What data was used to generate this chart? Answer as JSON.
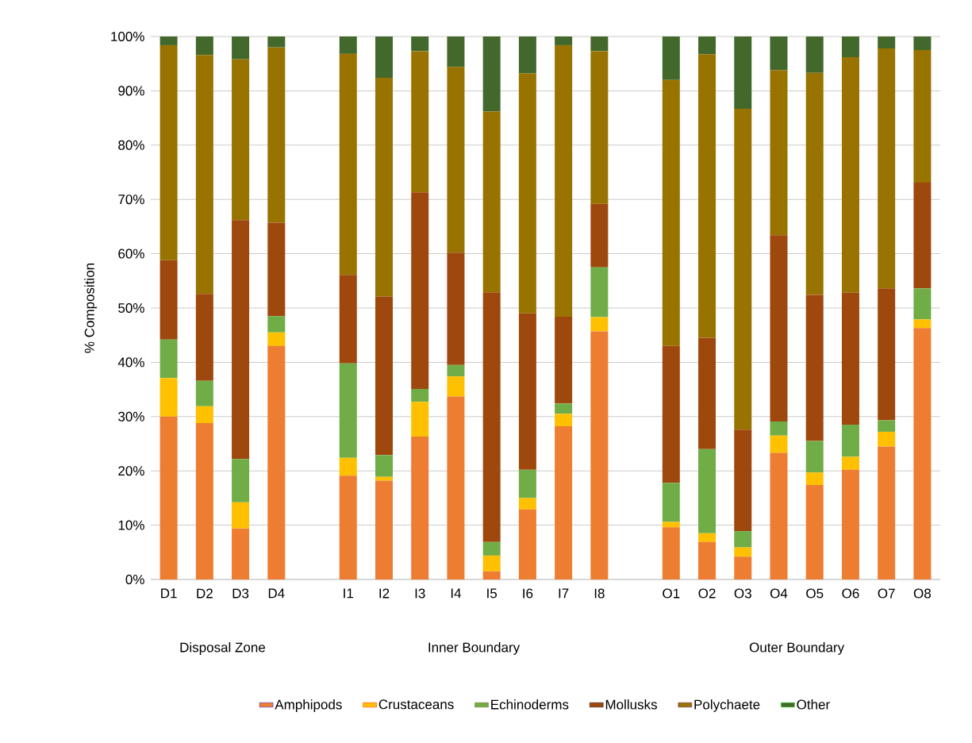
{
  "chart_data": {
    "type": "bar",
    "stacked": true,
    "ylabel": "% Composition",
    "categories": [
      "D1",
      "D2",
      "D3",
      "D4",
      null,
      "I1",
      "I2",
      "I3",
      "I4",
      "I5",
      "I6",
      "I7",
      "I8",
      null,
      "O1",
      "O2",
      "O3",
      "O4",
      "O5",
      "O6",
      "O7",
      "O8"
    ],
    "annotations": [
      "Disposal Zone",
      "Inner Boundary",
      "Outer Boundary"
    ],
    "ylim": [
      0,
      100
    ],
    "yticks": [
      {
        "value": 0,
        "label": "0%"
      },
      {
        "value": 10,
        "label": "10%"
      },
      {
        "value": 20,
        "label": "20%"
      },
      {
        "value": 30,
        "label": "30%"
      },
      {
        "value": 40,
        "label": "40%"
      },
      {
        "value": 50,
        "label": "50%"
      },
      {
        "value": 60,
        "label": "60%"
      },
      {
        "value": 70,
        "label": "70%"
      },
      {
        "value": 80,
        "label": "80%"
      },
      {
        "value": 90,
        "label": "90%"
      },
      {
        "value": 100,
        "label": "100%"
      }
    ],
    "grid": "y",
    "legend": "bottom",
    "series": [
      {
        "name": "Amphipods",
        "color": "#ed7d31",
        "values": [
          30.0,
          28.8,
          9.4,
          43.0,
          null,
          19.1,
          18.2,
          26.3,
          33.7,
          1.5,
          12.9,
          28.2,
          45.7,
          null,
          9.6,
          6.9,
          4.2,
          23.3,
          17.4,
          20.2,
          24.5,
          46.3
        ]
      },
      {
        "name": "Crustaceans",
        "color": "#ffc000",
        "values": [
          7.1,
          3.1,
          4.8,
          2.5,
          null,
          3.3,
          0.7,
          6.4,
          3.7,
          2.9,
          2.1,
          2.3,
          2.6,
          null,
          1.0,
          1.6,
          1.7,
          3.2,
          2.3,
          2.4,
          2.7,
          1.6
        ]
      },
      {
        "name": "Echinoderms",
        "color": "#70ad47",
        "values": [
          7.1,
          4.7,
          8.0,
          3.0,
          null,
          17.4,
          4.0,
          2.4,
          2.1,
          2.5,
          5.2,
          1.9,
          9.2,
          null,
          7.2,
          15.5,
          3.0,
          2.6,
          5.8,
          5.9,
          2.1,
          5.7
        ]
      },
      {
        "name": "Mollusks",
        "color": "#9e480e",
        "values": [
          14.6,
          16.0,
          44.0,
          17.2,
          null,
          16.3,
          29.2,
          36.2,
          20.7,
          46.0,
          28.8,
          16.0,
          11.7,
          null,
          25.2,
          20.5,
          18.7,
          34.3,
          26.9,
          24.3,
          24.3,
          19.5
        ]
      },
      {
        "name": "Polychaete",
        "color": "#997300",
        "values": [
          39.6,
          44.0,
          29.6,
          32.3,
          null,
          40.7,
          40.3,
          26.0,
          34.2,
          33.3,
          44.2,
          50.0,
          28.1,
          null,
          49.0,
          52.2,
          59.1,
          30.4,
          40.9,
          43.4,
          44.2,
          24.4
        ]
      },
      {
        "name": "Other",
        "color": "#43682b",
        "values": [
          1.6,
          3.4,
          4.2,
          2.0,
          null,
          3.2,
          7.6,
          2.7,
          5.6,
          13.8,
          6.8,
          1.6,
          2.7,
          null,
          8.0,
          3.3,
          13.3,
          6.2,
          6.7,
          3.8,
          2.2,
          2.5
        ]
      }
    ]
  }
}
